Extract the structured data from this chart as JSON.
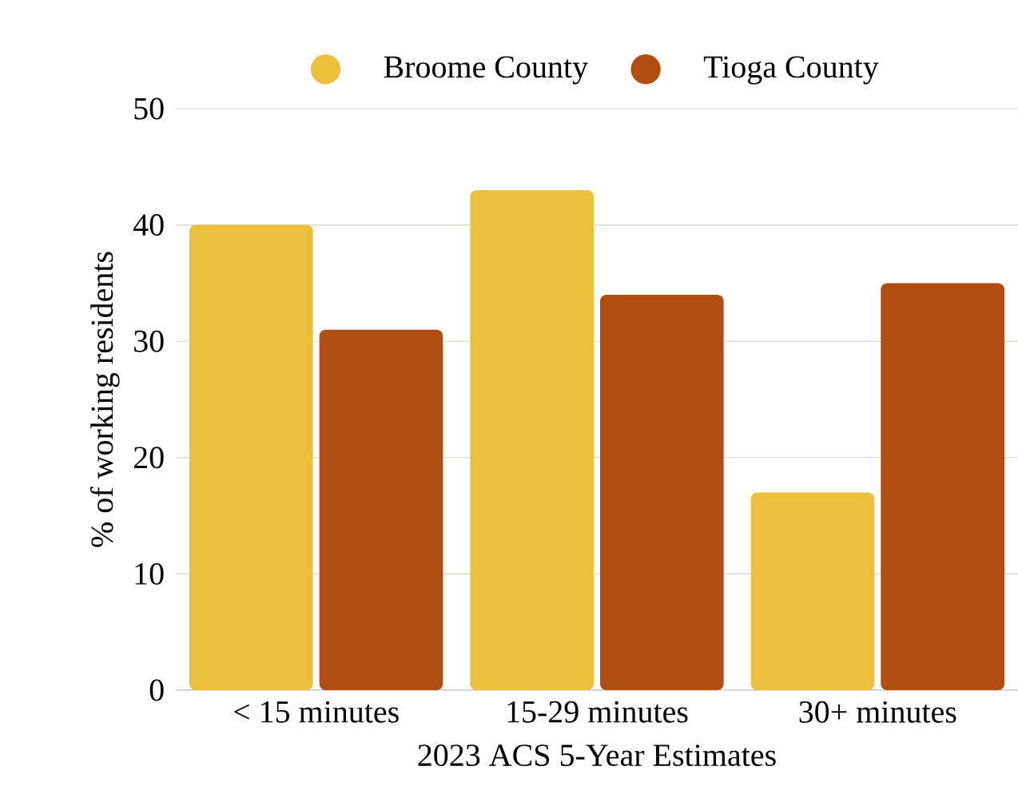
{
  "chart_data": {
    "type": "bar",
    "xlabel": "2023 ACS 5-Year Estimates",
    "ylabel": "% of working residents",
    "categories": [
      "< 15 minutes",
      "15-29 minutes",
      "30+ minutes"
    ],
    "series": [
      {
        "name": "Broome County",
        "color": "#ecbf3c",
        "values": [
          40,
          43,
          17
        ]
      },
      {
        "name": "Tioga County",
        "color": "#b04e12",
        "values": [
          31,
          34,
          35
        ]
      }
    ],
    "ylim": [
      0,
      50
    ],
    "yticks": [
      0,
      10,
      20,
      30,
      40,
      50
    ],
    "grid": "y",
    "legend": "top"
  }
}
